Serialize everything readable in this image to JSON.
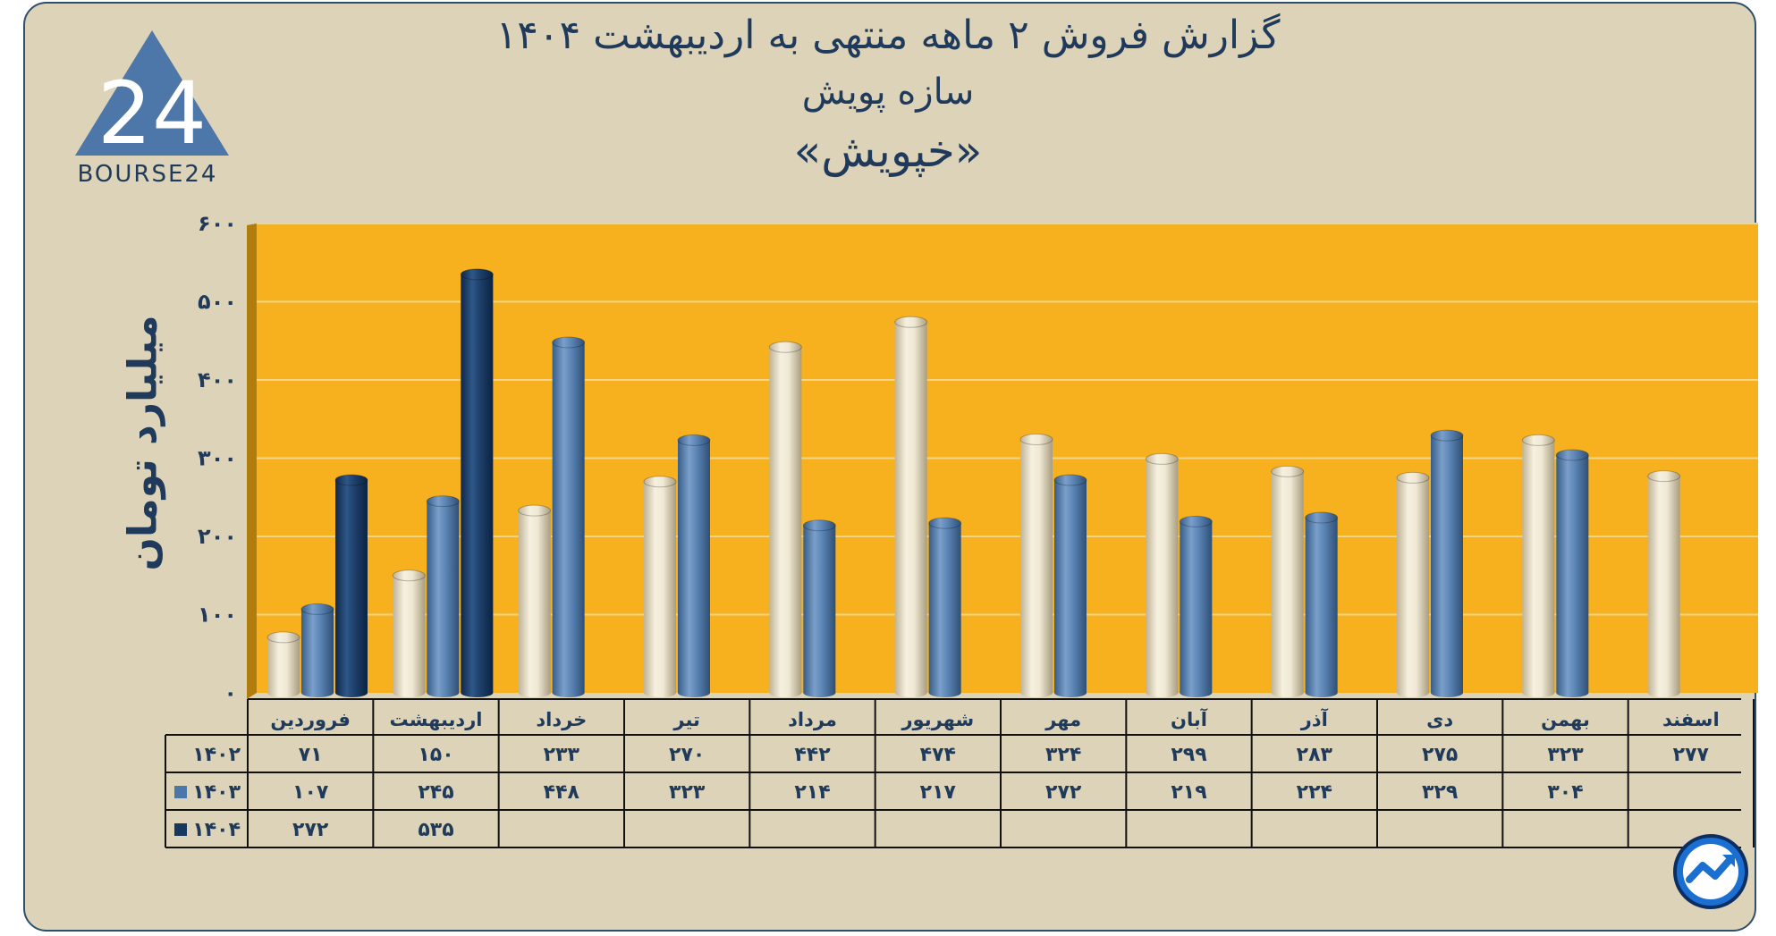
{
  "title": {
    "line1": "گزارش  فروش ۲ ماهه منتهی به اردیبهشت ۱۴۰۴",
    "line2": "سازه پویش",
    "line3": "«خپویش»"
  },
  "logo": {
    "text": "BOURSE24",
    "mark": "24"
  },
  "icon": {
    "corner": "trend-circle-icon"
  },
  "colors": {
    "background": "#ddd3b8",
    "plot": "#f7b11f",
    "s1402": "#ebe3cf",
    "s1403": "#4c77a8",
    "s1404": "#17375e"
  },
  "chart_data": {
    "type": "bar",
    "ylabel": "میلیارد تومان",
    "ylim": [
      0,
      600
    ],
    "yticks": [
      "۰",
      "۱۰۰",
      "۲۰۰",
      "۳۰۰",
      "۴۰۰",
      "۵۰۰",
      "۶۰۰"
    ],
    "ytick_values": [
      0,
      100,
      200,
      300,
      400,
      500,
      600
    ],
    "categories": [
      "فروردین",
      "اردیبهشت",
      "خرداد",
      "تیر",
      "مرداد",
      "شهریور",
      "مهر",
      "آبان",
      "آذر",
      "دی",
      "بهمن",
      "اسفند"
    ],
    "series": [
      {
        "name": "۱۴۰۲",
        "values": [
          71,
          150,
          233,
          270,
          442,
          474,
          324,
          299,
          283,
          275,
          323,
          277
        ],
        "labels": [
          "۷۱",
          "۱۵۰",
          "۲۳۳",
          "۲۷۰",
          "۴۴۲",
          "۴۷۴",
          "۳۲۴",
          "۲۹۹",
          "۲۸۳",
          "۲۷۵",
          "۳۲۳",
          "۲۷۷"
        ]
      },
      {
        "name": "۱۴۰۳",
        "values": [
          107,
          245,
          448,
          323,
          214,
          217,
          272,
          219,
          224,
          329,
          304,
          null
        ],
        "labels": [
          "۱۰۷",
          "۲۴۵",
          "۴۴۸",
          "۳۲۳",
          "۲۱۴",
          "۲۱۷",
          "۲۷۲",
          "۲۱۹",
          "۲۲۴",
          "۳۲۹",
          "۳۰۴",
          ""
        ]
      },
      {
        "name": "۱۴۰۴",
        "values": [
          272,
          535,
          null,
          null,
          null,
          null,
          null,
          null,
          null,
          null,
          null,
          null
        ],
        "labels": [
          "۲۷۲",
          "۵۳۵",
          "",
          "",
          "",
          "",
          "",
          "",
          "",
          "",
          "",
          ""
        ]
      }
    ],
    "grid": true,
    "legend": "data-table-left"
  }
}
